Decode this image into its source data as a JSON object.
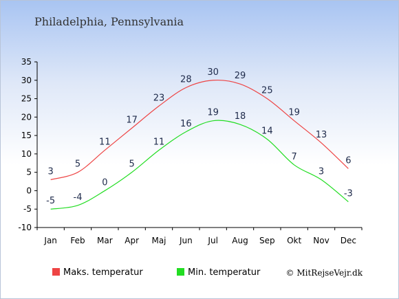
{
  "chart_data": {
    "type": "line",
    "title": "Philadelphia, Pennsylvania",
    "categories": [
      "Jan",
      "Feb",
      "Mar",
      "Apr",
      "Maj",
      "Jun",
      "Jul",
      "Aug",
      "Sep",
      "Okt",
      "Nov",
      "Dec"
    ],
    "series": [
      {
        "name": "Maks. temperatur",
        "color": "#ee4444",
        "values": [
          3,
          5,
          11,
          17,
          23,
          28,
          30,
          29,
          25,
          19,
          13,
          6
        ]
      },
      {
        "name": "Min. temperatur",
        "color": "#22dd22",
        "values": [
          -5,
          -4,
          0,
          5,
          11,
          16,
          19,
          18,
          14,
          7,
          3,
          -3
        ]
      }
    ],
    "ylim": [
      -10,
      35
    ],
    "yticks": [
      -10,
      -5,
      0,
      5,
      10,
      15,
      20,
      25,
      30,
      35
    ],
    "grid": false,
    "legend_position": "bottom-left",
    "credit": "© MitRejseVejr.dk"
  }
}
